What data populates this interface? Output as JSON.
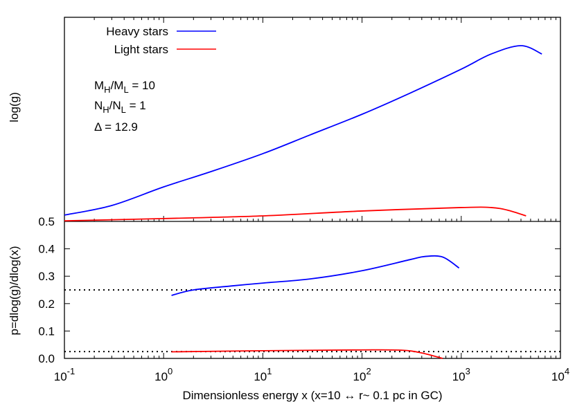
{
  "chart_data": [
    {
      "panel": "top",
      "type": "line",
      "ylabel": "log(g)",
      "xscale": "log",
      "xlim": [
        0.1,
        10000
      ],
      "ylim": [
        0,
        1
      ],
      "y_ticks_shown": false,
      "legend": {
        "placement": "top-left",
        "entries": [
          "Heavy stars",
          "Light stars"
        ]
      },
      "annotations": {
        "mass_ratio": {
          "main": "M",
          "sub1": "H",
          "mid": "/M",
          "sub2": "L",
          "rest": " = 10"
        },
        "number_ratio": {
          "main": "N",
          "sub1": "H",
          "mid": "/N",
          "sub2": "L",
          "rest": " = 1"
        },
        "delta": "Δ = 12.9"
      },
      "series": [
        {
          "name": "Heavy stars",
          "color": "#0000ff",
          "x": [
            0.1,
            0.3,
            1,
            3,
            10,
            30,
            100,
            300,
            1000,
            2000,
            4000,
            6500
          ],
          "y": [
            0.031,
            0.078,
            0.169,
            0.244,
            0.332,
            0.424,
            0.525,
            0.627,
            0.746,
            0.82,
            0.861,
            0.82
          ]
        },
        {
          "name": "Light stars",
          "color": "#ff0000",
          "x": [
            0.1,
            1,
            10,
            100,
            1000,
            2000,
            3000,
            4500
          ],
          "y": [
            0.003,
            0.014,
            0.027,
            0.051,
            0.068,
            0.068,
            0.054,
            0.027
          ]
        }
      ]
    },
    {
      "panel": "bottom",
      "type": "line",
      "xlabel": "Dimensionless energy x (x=10 ↔ r~ 0.1 pc in GC)",
      "ylabel": "p=dlog(g)/dlog(x)",
      "xscale": "log",
      "xlim": [
        0.1,
        10000
      ],
      "ylim": [
        0,
        0.5
      ],
      "x_ticks": [
        {
          "base": "10",
          "exp": "-1"
        },
        {
          "base": "10",
          "exp": "0"
        },
        {
          "base": "10",
          "exp": "1"
        },
        {
          "base": "10",
          "exp": "2"
        },
        {
          "base": "10",
          "exp": "3"
        },
        {
          "base": "10",
          "exp": "4"
        }
      ],
      "y_ticks": [
        "0.0",
        "0.1",
        "0.2",
        "0.3",
        "0.4",
        "0.5"
      ],
      "reference_lines": [
        0.25,
        0.025
      ],
      "series": [
        {
          "name": "Heavy stars",
          "color": "#0000ff",
          "x": [
            1.2,
            2,
            5,
            10,
            30,
            100,
            300,
            430,
            650,
            950
          ],
          "y": [
            0.23,
            0.25,
            0.265,
            0.275,
            0.29,
            0.32,
            0.36,
            0.372,
            0.37,
            0.33
          ]
        },
        {
          "name": "Light stars",
          "color": "#ff0000",
          "x": [
            1.2,
            10,
            100,
            250,
            400,
            650
          ],
          "y": [
            0.024,
            0.028,
            0.031,
            0.03,
            0.02,
            0.0
          ]
        }
      ]
    }
  ]
}
